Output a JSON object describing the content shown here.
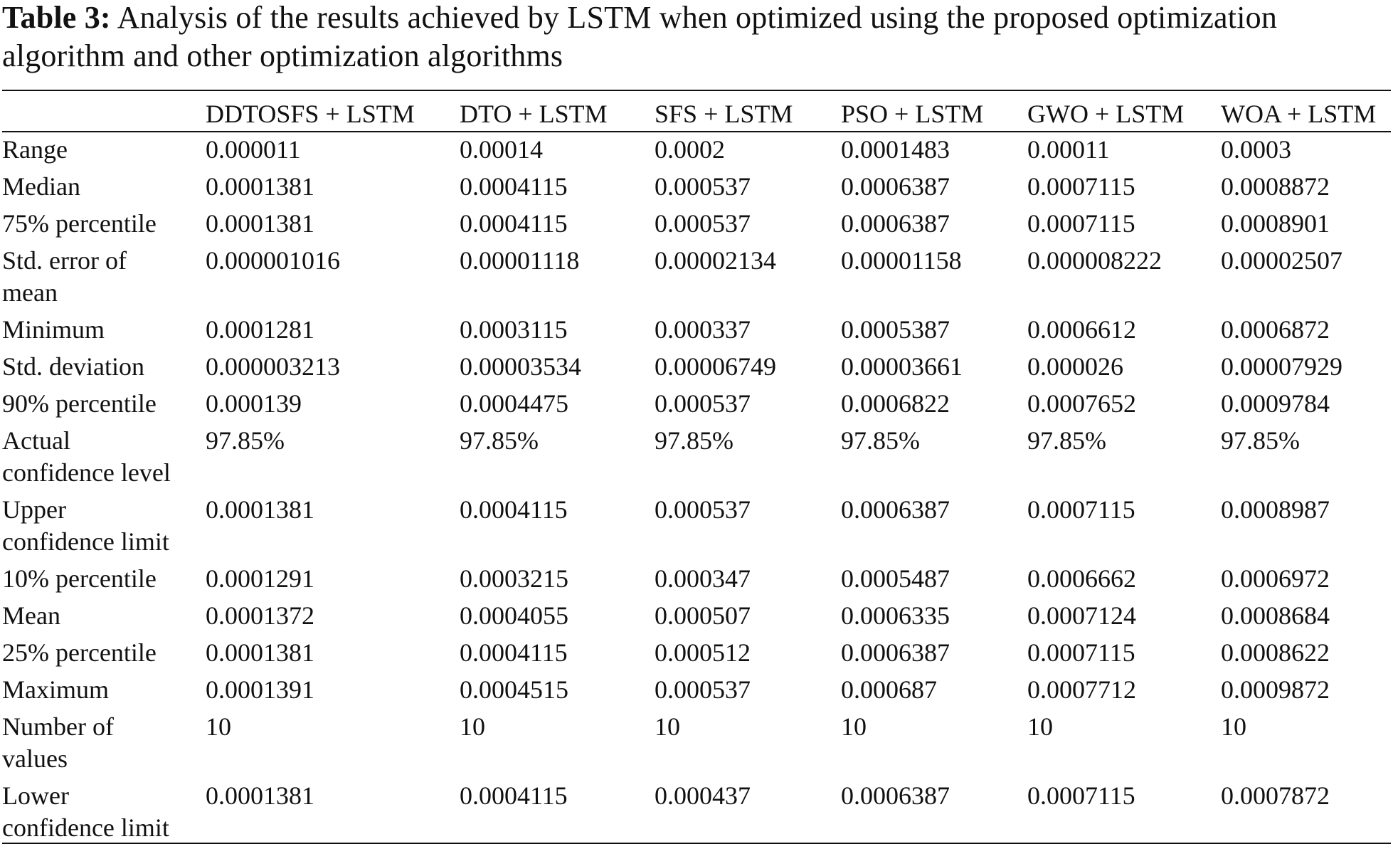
{
  "caption": {
    "label": "Table 3:",
    "text": "Analysis of the results achieved by LSTM when optimized using the proposed optimization algorithm and other optimization algorithms"
  },
  "table": {
    "columns": [
      "",
      "DDTOSFS + LSTM",
      "DTO + LSTM",
      "SFS + LSTM",
      "PSO + LSTM",
      "GWO + LSTM",
      "WOA + LSTM"
    ],
    "rows": [
      {
        "label": [
          "Range"
        ],
        "values": [
          "0.000011",
          "0.00014",
          "0.0002",
          "0.0001483",
          "0.00011",
          "0.0003"
        ]
      },
      {
        "label": [
          "Median"
        ],
        "values": [
          "0.0001381",
          "0.0004115",
          "0.000537",
          "0.0006387",
          "0.0007115",
          "0.0008872"
        ]
      },
      {
        "label": [
          "75% percentile"
        ],
        "values": [
          "0.0001381",
          "0.0004115",
          "0.000537",
          "0.0006387",
          "0.0007115",
          "0.0008901"
        ]
      },
      {
        "label": [
          "Std. error of",
          "mean"
        ],
        "values": [
          "0.000001016",
          "0.00001118",
          "0.00002134",
          "0.00001158",
          "0.000008222",
          "0.00002507"
        ]
      },
      {
        "label": [
          "Minimum"
        ],
        "values": [
          "0.0001281",
          "0.0003115",
          "0.000337",
          "0.0005387",
          "0.0006612",
          "0.0006872"
        ]
      },
      {
        "label": [
          "Std. deviation"
        ],
        "values": [
          "0.000003213",
          "0.00003534",
          "0.00006749",
          "0.00003661",
          "0.000026",
          "0.00007929"
        ]
      },
      {
        "label": [
          "90% percentile"
        ],
        "values": [
          "0.000139",
          "0.0004475",
          "0.000537",
          "0.0006822",
          "0.0007652",
          "0.0009784"
        ]
      },
      {
        "label": [
          "Actual",
          "confidence level"
        ],
        "values": [
          "97.85%",
          "97.85%",
          "97.85%",
          "97.85%",
          "97.85%",
          "97.85%"
        ]
      },
      {
        "label": [
          "Upper",
          "confidence limit"
        ],
        "values": [
          "0.0001381",
          "0.0004115",
          "0.000537",
          "0.0006387",
          "0.0007115",
          "0.0008987"
        ]
      },
      {
        "label": [
          "10% percentile"
        ],
        "values": [
          "0.0001291",
          "0.0003215",
          "0.000347",
          "0.0005487",
          "0.0006662",
          "0.0006972"
        ]
      },
      {
        "label": [
          "Mean"
        ],
        "values": [
          "0.0001372",
          "0.0004055",
          "0.000507",
          "0.0006335",
          "0.0007124",
          "0.0008684"
        ]
      },
      {
        "label": [
          "25% percentile"
        ],
        "values": [
          "0.0001381",
          "0.0004115",
          "0.000512",
          "0.0006387",
          "0.0007115",
          "0.0008622"
        ]
      },
      {
        "label": [
          "Maximum"
        ],
        "values": [
          "0.0001391",
          "0.0004515",
          "0.000537",
          "0.000687",
          "0.0007712",
          "0.0009872"
        ]
      },
      {
        "label": [
          "Number of",
          "values"
        ],
        "values": [
          "10",
          "10",
          "10",
          "10",
          "10",
          "10"
        ]
      },
      {
        "label": [
          "Lower",
          "confidence limit"
        ],
        "values": [
          "0.0001381",
          "0.0004115",
          "0.000437",
          "0.0006387",
          "0.0007115",
          "0.0007872"
        ]
      }
    ]
  }
}
